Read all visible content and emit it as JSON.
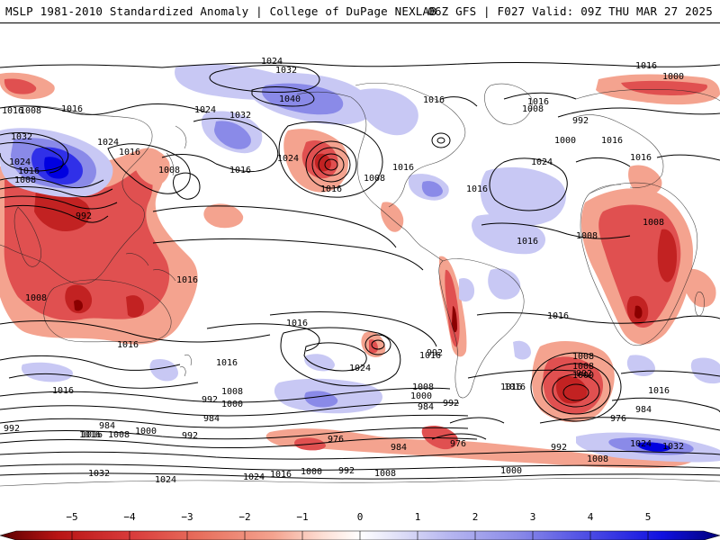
{
  "header": {
    "title": "MSLP 1981-2010 Standardized Anomaly | College of DuPage NEXLAB",
    "run_info": "06Z GFS | F027 Valid: 09Z THU MAR 27 2025"
  },
  "colors": {
    "strong_negative": "#8b0000",
    "negative": "#e05050",
    "weak_negative": "#f4a38f",
    "weak_positive": "#c8c8f4",
    "positive": "#8a8ae8",
    "strong_positive": "#0000e0",
    "contour": "#000000"
  },
  "colorbar": {
    "ticks": [
      "−5",
      "−4",
      "−3",
      "−2",
      "−1",
      "0",
      "1",
      "2",
      "3",
      "4",
      "5"
    ]
  },
  "isobar_labels": [
    {
      "text": "1024"
    },
    {
      "text": "1032"
    },
    {
      "text": "1040"
    },
    {
      "text": "1024"
    },
    {
      "text": "1032"
    },
    {
      "text": "1024"
    },
    {
      "text": "1016"
    },
    {
      "text": "1016"
    },
    {
      "text": "1008"
    },
    {
      "text": "1016"
    },
    {
      "text": "1032"
    },
    {
      "text": "1024"
    },
    {
      "text": "1016"
    },
    {
      "text": "1024"
    },
    {
      "text": "1016"
    },
    {
      "text": "1008"
    },
    {
      "text": "1008"
    },
    {
      "text": "992"
    },
    {
      "text": "1016"
    },
    {
      "text": "1008"
    },
    {
      "text": "1016"
    },
    {
      "text": "1016"
    },
    {
      "text": "1016"
    },
    {
      "text": "1008"
    },
    {
      "text": "1016"
    },
    {
      "text": "1024"
    },
    {
      "text": "1016"
    },
    {
      "text": "1016"
    },
    {
      "text": "1016"
    },
    {
      "text": "1000"
    },
    {
      "text": "1016"
    },
    {
      "text": "1008"
    },
    {
      "text": "992"
    },
    {
      "text": "1000"
    },
    {
      "text": "1016"
    },
    {
      "text": "1016"
    },
    {
      "text": "1008"
    },
    {
      "text": "1008"
    },
    {
      "text": "1016"
    },
    {
      "text": "1008"
    },
    {
      "text": "1016"
    },
    {
      "text": "1016"
    },
    {
      "text": "1016"
    },
    {
      "text": "1024"
    },
    {
      "text": "1016"
    },
    {
      "text": "1016"
    },
    {
      "text": "1008"
    },
    {
      "text": "1000"
    },
    {
      "text": "992"
    },
    {
      "text": "976"
    },
    {
      "text": "984"
    },
    {
      "text": "1016"
    },
    {
      "text": "1016"
    },
    {
      "text": "1008"
    },
    {
      "text": "1000"
    },
    {
      "text": "992"
    },
    {
      "text": "984"
    },
    {
      "text": "1008"
    },
    {
      "text": "1000"
    },
    {
      "text": "984"
    },
    {
      "text": "992"
    },
    {
      "text": "992"
    },
    {
      "text": "984"
    },
    {
      "text": "1016"
    },
    {
      "text": "1008"
    },
    {
      "text": "1000"
    },
    {
      "text": "992"
    },
    {
      "text": "976"
    },
    {
      "text": "984"
    },
    {
      "text": "976"
    },
    {
      "text": "992"
    },
    {
      "text": "1032"
    },
    {
      "text": "1024"
    },
    {
      "text": "1024"
    },
    {
      "text": "1016"
    },
    {
      "text": "1000"
    },
    {
      "text": "992"
    },
    {
      "text": "1008"
    },
    {
      "text": "1000"
    },
    {
      "text": "1024"
    },
    {
      "text": "1032"
    },
    {
      "text": "1008"
    },
    {
      "text": "992"
    },
    {
      "text": "1016"
    }
  ]
}
